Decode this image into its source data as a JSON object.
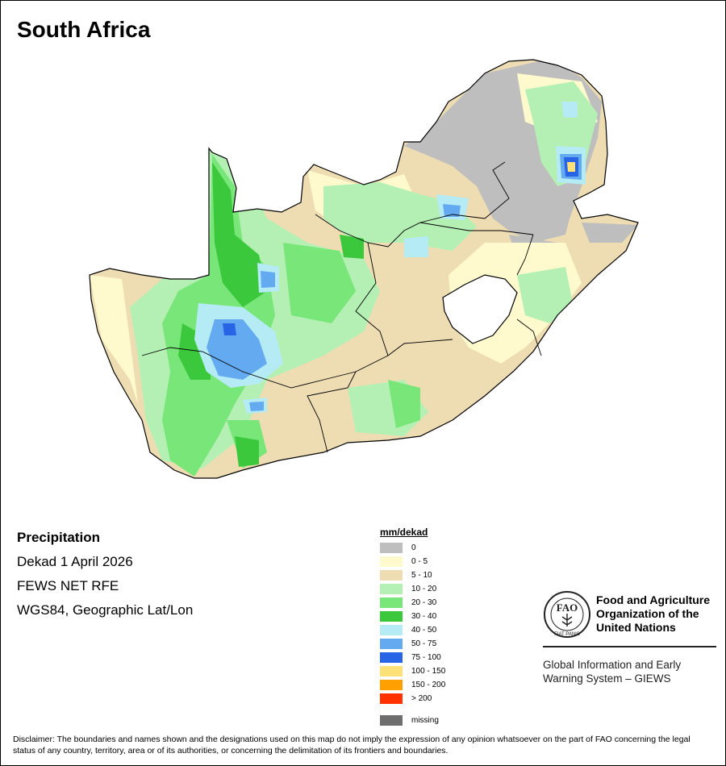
{
  "title": "South Africa",
  "info": {
    "heading": "Precipitation",
    "period": "Dekad 1 April 2026",
    "source": "FEWS NET RFE",
    "projection": "WGS84, Geographic Lat/Lon"
  },
  "legend": {
    "title": "mm/dekad",
    "items": [
      {
        "label": "0",
        "color": "#bebebe"
      },
      {
        "label": "0 - 5",
        "color": "#fffacd"
      },
      {
        "label": "5 - 10",
        "color": "#eedcb3"
      },
      {
        "label": "10 - 20",
        "color": "#b4f0b4"
      },
      {
        "label": "20 - 30",
        "color": "#78e678"
      },
      {
        "label": "30 - 40",
        "color": "#3cc83c"
      },
      {
        "label": "40 - 50",
        "color": "#b4ebf5"
      },
      {
        "label": "50 - 75",
        "color": "#64aaf0"
      },
      {
        "label": "75 - 100",
        "color": "#2864e6"
      },
      {
        "label": "100 - 150",
        "color": "#ffe178"
      },
      {
        "label": "150 - 200",
        "color": "#ffa000"
      },
      {
        "label": "> 200",
        "color": "#ff3200"
      }
    ],
    "missing": {
      "label": "missing",
      "color": "#6e6e6e"
    }
  },
  "logo": {
    "org_line1": "Food and Agriculture",
    "org_line2": "Organization of the",
    "org_line3": "United Nations",
    "emblem_text": "FAO",
    "motto": "FIAT PANIS",
    "giews_line1": "Global Information and Early",
    "giews_line2": "Warning System – GIEWS"
  },
  "disclaimer": "Disclaimer: The boundaries and names shown and the designations used on this map do not imply the expression of any opinion whatsoever on the part of FAO concerning the legal status of any country, territory, area or of its authorities, or concerning the delimitation of its frontiers and boundaries."
}
